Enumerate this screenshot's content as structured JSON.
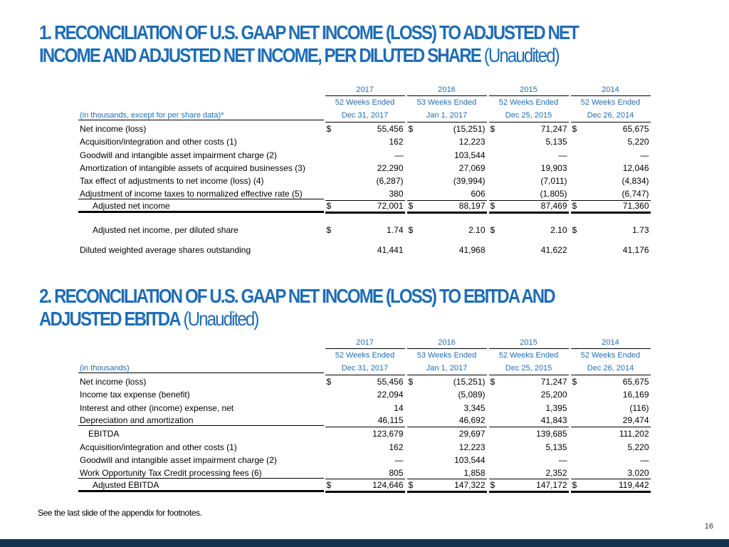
{
  "section1": {
    "title_line1": "1. RECONCILIATION OF U.S. GAAP NET INCOME (LOSS) TO ADJUSTED NET",
    "title_line2": "INCOME AND ADJUSTED NET INCOME, PER DILUTED SHARE",
    "title_suffix": " (Unaudited)",
    "years": [
      "2017",
      "2016",
      "2015",
      "2014"
    ],
    "periods": [
      "52 Weeks Ended",
      "53 Weeks Ended",
      "52 Weeks Ended",
      "52 Weeks Ended"
    ],
    "dates": [
      "Dec 31, 2017",
      "Jan 1, 2017",
      "Dec 25, 2015",
      "Dec 26, 2014"
    ],
    "units": "(in thousands, except for per share data)*",
    "rows": [
      {
        "label": "Net income (loss)",
        "dollar": true,
        "values": [
          "55,456",
          "(15,251)",
          "71,247",
          "65,675"
        ]
      },
      {
        "label": "Acquisition/integration and other costs (1)",
        "values": [
          "162",
          "12,223",
          "5,135",
          "5,220"
        ]
      },
      {
        "label": "Goodwill and intangible asset impairment charge (2)",
        "values": [
          "—",
          "103,544",
          "—",
          "—"
        ]
      },
      {
        "label": "Amortization of intangible assets of acquired businesses (3)",
        "values": [
          "22,290",
          "27,069",
          "19,903",
          "12,046"
        ]
      },
      {
        "label": "Tax effect of adjustments to net income (loss) (4)",
        "values": [
          "(6,287)",
          "(39,994)",
          "(7,011)",
          "(4,834)"
        ]
      },
      {
        "label": "Adjustment of income taxes to normalized effective rate (5)",
        "values": [
          "380",
          "606",
          "(1,805)",
          "(6,747)"
        ]
      },
      {
        "label": "Adjusted net income",
        "dollar": true,
        "values": [
          "72,001",
          "88,197",
          "87,469",
          "71,360"
        ]
      },
      {
        "label": "Adjusted net income, per diluted share",
        "dollar": true,
        "values": [
          "1.74",
          "2.10",
          "2.10",
          "1.73"
        ]
      },
      {
        "label": "Diluted weighted average shares outstanding",
        "values": [
          "41,441",
          "41,968",
          "41,622",
          "41,176"
        ]
      }
    ]
  },
  "section2": {
    "title_line1": "2. RECONCILIATION OF U.S. GAAP NET INCOME (LOSS) TO EBITDA AND",
    "title_line2": "ADJUSTED EBITDA",
    "title_suffix": " (Unaudited)",
    "years": [
      "2017",
      "2016",
      "2015",
      "2014"
    ],
    "periods": [
      "52 Weeks Ended",
      "53 Weeks Ended",
      "52 Weeks Ended",
      "52 Weeks Ended"
    ],
    "dates": [
      "Dec 31, 2017",
      "Jan 1, 2017",
      "Dec 25, 2015",
      "Dec 26, 2014"
    ],
    "units": "(in thousands)",
    "rows": [
      {
        "label": "Net income (loss)",
        "dollar": true,
        "values": [
          "55,456",
          "(15,251)",
          "71,247",
          "65,675"
        ]
      },
      {
        "label": "Income tax expense (benefit)",
        "values": [
          "22,094",
          "(5,089)",
          "25,200",
          "16,169"
        ]
      },
      {
        "label": "Interest and other (income) expense, net",
        "values": [
          "14",
          "3,345",
          "1,395",
          "(116)"
        ]
      },
      {
        "label": "Depreciation and amortization",
        "values": [
          "46,115",
          "46,692",
          "41,843",
          "29,474"
        ]
      },
      {
        "label": "EBITDA",
        "values": [
          "123,679",
          "29,697",
          "139,685",
          "111,202"
        ]
      },
      {
        "label": "Acquisition/integration and other costs (1)",
        "values": [
          "162",
          "12,223",
          "5,135",
          "5,220"
        ]
      },
      {
        "label": "Goodwill and intangible asset impairment charge (2)",
        "values": [
          "—",
          "103,544",
          "—",
          "—"
        ]
      },
      {
        "label": "Work Opportunity Tax Credit processing fees (6)",
        "values": [
          "805",
          "1,858",
          "2,352",
          "3,020"
        ]
      },
      {
        "label": "Adjusted EBITDA",
        "dollar": true,
        "values": [
          "124,646",
          "147,322",
          "147,172",
          "119,442"
        ]
      }
    ]
  },
  "currency_symbol": "$",
  "footnote": "See the last slide of the appendix for footnotes.",
  "page_number": "16",
  "colors": {
    "accent": "#1f6db5",
    "footer_bar": "#14304f"
  }
}
